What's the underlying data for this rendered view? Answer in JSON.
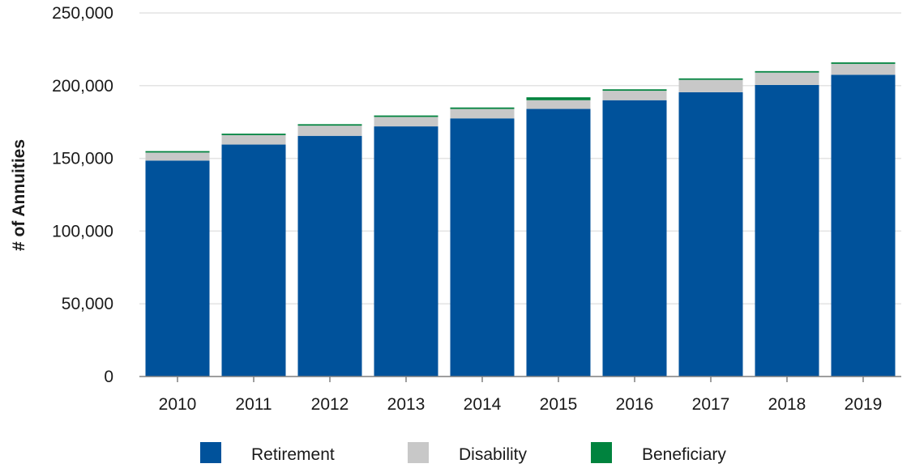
{
  "chart_data": {
    "type": "bar",
    "stacked": true,
    "title": "",
    "xlabel": "",
    "ylabel": "# of Annuities",
    "ylim": [
      0,
      250000
    ],
    "yticks": [
      0,
      50000,
      100000,
      150000,
      200000,
      250000
    ],
    "ytick_labels": [
      "0",
      "50,000",
      "100,000",
      "150,000",
      "200,000",
      "250,000"
    ],
    "grid": true,
    "legend_position": "bottom",
    "categories": [
      "2010",
      "2011",
      "2012",
      "2013",
      "2014",
      "2015",
      "2016",
      "2017",
      "2018",
      "2019"
    ],
    "series": [
      {
        "name": "Retirement",
        "color": "#00529b",
        "values": [
          148500,
          159500,
          165500,
          172000,
          177500,
          184000,
          190000,
          195500,
          200500,
          207500
        ]
      },
      {
        "name": "Disability",
        "color": "#c8c8c8",
        "values": [
          5500,
          6500,
          7000,
          6500,
          6500,
          6000,
          6500,
          8500,
          8500,
          7500
        ]
      },
      {
        "name": "Beneficiary",
        "color": "#00833e",
        "values": [
          1000,
          1000,
          1000,
          1000,
          1000,
          2000,
          1000,
          1000,
          1000,
          1000
        ]
      }
    ]
  }
}
